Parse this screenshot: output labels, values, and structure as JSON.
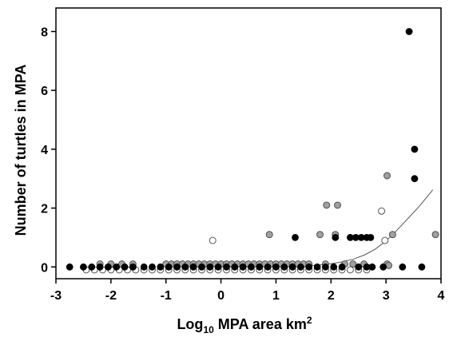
{
  "chart_data": {
    "type": "scatter",
    "xlabel_main": "Log",
    "xlabel_sub": "10",
    "xlabel_rest": " MPA area km",
    "xlabel_sup": "2",
    "ylabel": "Number of turtles in MPA",
    "xlim": [
      -3,
      4
    ],
    "ylim": [
      -0.4,
      8.8
    ],
    "x_ticks": [
      -3,
      -2,
      -1,
      0,
      1,
      2,
      3,
      4
    ],
    "x_tick_labels": [
      "-3",
      "-2",
      "-1",
      "0",
      "1",
      "2",
      "3",
      "4"
    ],
    "y_ticks": [
      0,
      2,
      4,
      6,
      8
    ],
    "y_tick_labels": [
      "0",
      "2",
      "4",
      "6",
      "8"
    ],
    "grid": false,
    "legend": "none",
    "colors": {
      "black": "#000000",
      "gray": "#a0a0a0",
      "white": "#ffffff",
      "curve": "#555555"
    },
    "series": [
      {
        "fill": "black",
        "points": [
          [
            -2.75,
            0
          ],
          [
            -2.5,
            0
          ],
          [
            -2.35,
            0
          ],
          [
            -2.2,
            0
          ],
          [
            -2.05,
            0
          ],
          [
            -1.9,
            0
          ],
          [
            -1.75,
            0
          ],
          [
            -1.6,
            0
          ],
          [
            -1.4,
            0
          ],
          [
            -1.25,
            0
          ],
          [
            -1.1,
            0
          ],
          [
            -0.95,
            0
          ],
          [
            -0.8,
            0
          ],
          [
            -0.65,
            0
          ],
          [
            -0.5,
            0
          ],
          [
            -0.35,
            0
          ],
          [
            -0.2,
            0
          ],
          [
            -0.05,
            0
          ],
          [
            0.1,
            0
          ],
          [
            0.25,
            0
          ],
          [
            0.4,
            0
          ],
          [
            0.55,
            0
          ],
          [
            0.7,
            0
          ],
          [
            0.85,
            0
          ],
          [
            1.0,
            0
          ],
          [
            1.15,
            0
          ],
          [
            1.3,
            0
          ],
          [
            1.45,
            0
          ],
          [
            1.6,
            0
          ],
          [
            1.75,
            0
          ],
          [
            1.9,
            0
          ],
          [
            2.05,
            0
          ],
          [
            2.2,
            0
          ],
          [
            2.5,
            0
          ],
          [
            2.65,
            0
          ],
          [
            2.75,
            0
          ],
          [
            2.95,
            0
          ],
          [
            3.3,
            0
          ],
          [
            3.65,
            0
          ],
          [
            1.35,
            1
          ],
          [
            2.08,
            1
          ],
          [
            2.35,
            1
          ],
          [
            2.45,
            1
          ],
          [
            2.55,
            1
          ],
          [
            2.65,
            1
          ],
          [
            2.72,
            1
          ],
          [
            3.42,
            8
          ],
          [
            3.52,
            4
          ],
          [
            3.52,
            3
          ]
        ]
      },
      {
        "fill": "gray",
        "points": [
          [
            -2.2,
            0.1
          ],
          [
            -2.0,
            0.1
          ],
          [
            -1.8,
            0.1
          ],
          [
            -1.6,
            0.1
          ],
          [
            -1.0,
            0.1
          ],
          [
            -0.9,
            0.1
          ],
          [
            -0.8,
            0.1
          ],
          [
            -0.7,
            0.1
          ],
          [
            -0.6,
            0.1
          ],
          [
            -0.5,
            0.1
          ],
          [
            -0.4,
            0.1
          ],
          [
            -0.3,
            0.1
          ],
          [
            -0.2,
            0.1
          ],
          [
            -0.1,
            0.1
          ],
          [
            0.0,
            0.1
          ],
          [
            0.1,
            0.1
          ],
          [
            0.2,
            0.1
          ],
          [
            0.3,
            0.1
          ],
          [
            0.4,
            0.1
          ],
          [
            0.5,
            0.1
          ],
          [
            0.6,
            0.1
          ],
          [
            0.7,
            0.1
          ],
          [
            0.8,
            0.1
          ],
          [
            0.9,
            0.1
          ],
          [
            1.0,
            0.1
          ],
          [
            1.1,
            0.1
          ],
          [
            1.2,
            0.1
          ],
          [
            1.3,
            0.1
          ],
          [
            1.4,
            0.1
          ],
          [
            1.5,
            0.1
          ],
          [
            1.6,
            0.1
          ],
          [
            1.9,
            0.1
          ],
          [
            2.25,
            0.1
          ],
          [
            2.4,
            0.1
          ],
          [
            2.6,
            0.1
          ],
          [
            3.02,
            0.1
          ],
          [
            3.05,
            0.05
          ],
          [
            0.88,
            1.1
          ],
          [
            1.8,
            1.1
          ],
          [
            2.08,
            1.1
          ],
          [
            3.12,
            1.1
          ],
          [
            3.9,
            1.1
          ],
          [
            1.92,
            2.1
          ],
          [
            2.12,
            2.1
          ],
          [
            3.02,
            3.1
          ]
        ]
      },
      {
        "fill": "white",
        "points": [
          [
            -2.45,
            -0.1
          ],
          [
            -2.3,
            -0.1
          ],
          [
            -2.15,
            -0.1
          ],
          [
            -2.0,
            -0.1
          ],
          [
            -1.85,
            -0.1
          ],
          [
            -1.7,
            -0.1
          ],
          [
            -1.55,
            -0.1
          ],
          [
            -1.4,
            -0.1
          ],
          [
            -1.25,
            -0.1
          ],
          [
            -1.1,
            -0.1
          ],
          [
            -0.95,
            -0.1
          ],
          [
            -0.8,
            -0.1
          ],
          [
            -0.65,
            -0.1
          ],
          [
            -0.5,
            -0.1
          ],
          [
            -0.35,
            -0.1
          ],
          [
            -0.2,
            -0.1
          ],
          [
            -0.05,
            -0.1
          ],
          [
            0.1,
            -0.1
          ],
          [
            0.25,
            -0.1
          ],
          [
            0.4,
            -0.1
          ],
          [
            0.55,
            -0.1
          ],
          [
            0.7,
            -0.1
          ],
          [
            0.85,
            -0.1
          ],
          [
            1.0,
            -0.1
          ],
          [
            1.15,
            -0.1
          ],
          [
            1.3,
            -0.1
          ],
          [
            1.45,
            -0.1
          ],
          [
            1.6,
            -0.1
          ],
          [
            1.75,
            -0.1
          ],
          [
            1.9,
            -0.1
          ],
          [
            2.05,
            -0.1
          ],
          [
            2.2,
            -0.1
          ],
          [
            2.35,
            -0.1
          ],
          [
            2.5,
            -0.1
          ],
          [
            2.65,
            -0.1
          ],
          [
            -0.15,
            0.9
          ],
          [
            2.98,
            0.9
          ],
          [
            2.92,
            1.9
          ]
        ]
      }
    ],
    "curve": {
      "type": "exponential",
      "x": [
        1.4,
        1.6,
        1.8,
        2.0,
        2.2,
        2.4,
        2.6,
        2.8,
        3.0,
        3.2,
        3.4,
        3.6,
        3.8,
        3.85
      ],
      "y": [
        0.02,
        0.04,
        0.07,
        0.11,
        0.17,
        0.26,
        0.4,
        0.6,
        0.88,
        1.25,
        1.65,
        2.05,
        2.5,
        2.62
      ]
    }
  }
}
